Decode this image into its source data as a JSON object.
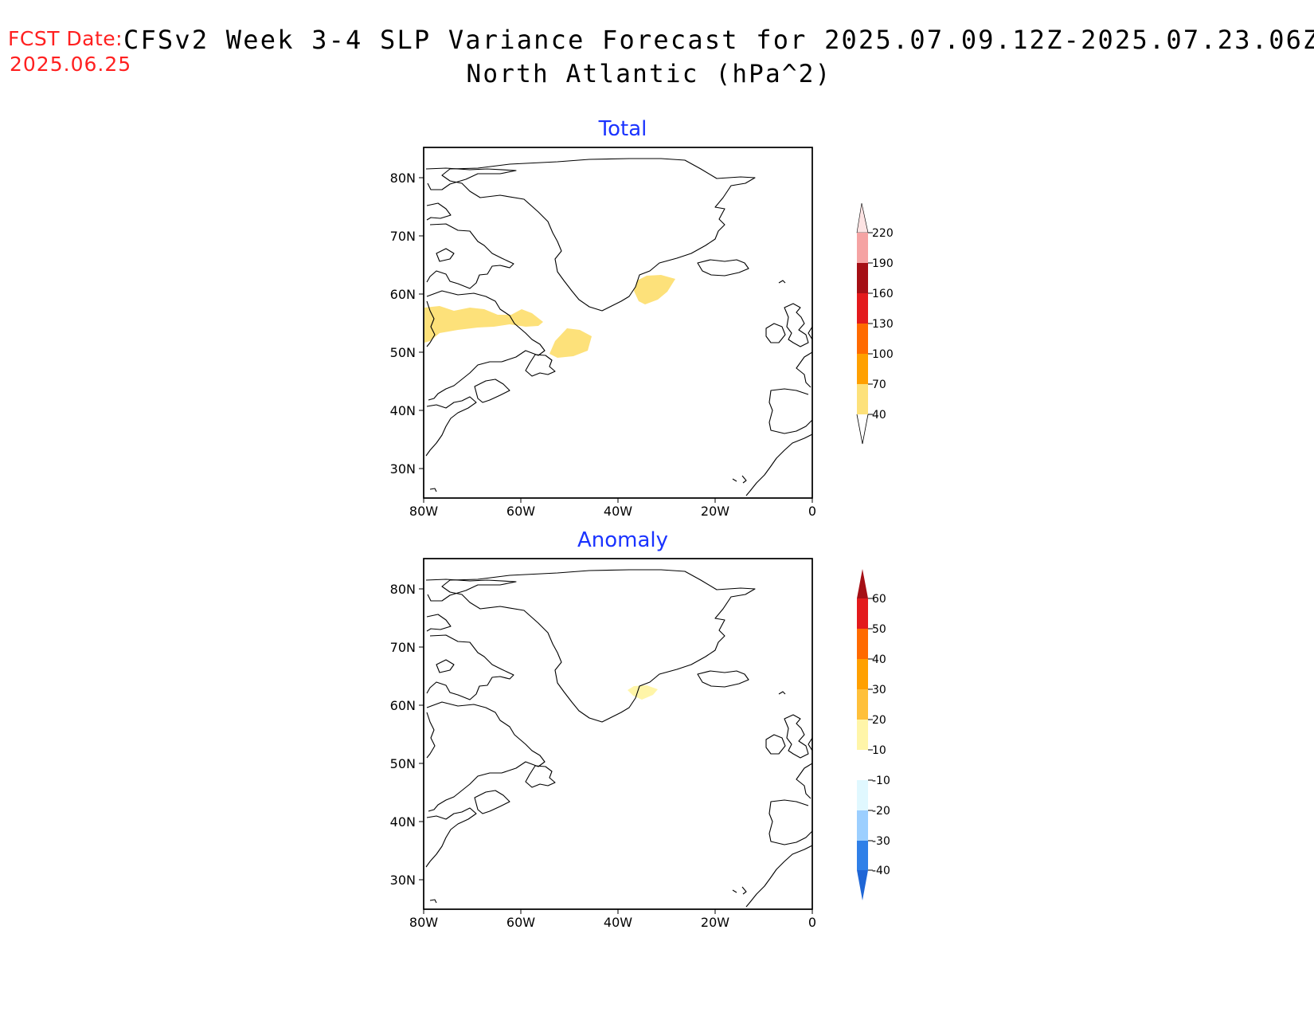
{
  "header": {
    "fcst_label": "FCST Date:",
    "fcst_date": "2025.06.25",
    "title": "CFSv2 Week 3-4 SLP Variance Forecast for 2025.07.09.12Z-2025.07.23.06Z",
    "subtitle": "North Atlantic (hPa^2)"
  },
  "colors": {
    "header_date": "#ff2020",
    "panel_title": "#1a33ff",
    "coast": "#000000"
  },
  "map": {
    "region": "North Atlantic",
    "lon_range": [
      -80,
      0
    ],
    "lat_range": [
      25,
      85
    ],
    "lon_ticks": [
      "80W",
      "60W",
      "40W",
      "20W",
      "0"
    ],
    "lat_ticks": [
      "80N",
      "70N",
      "60N",
      "50N",
      "40N",
      "30N"
    ]
  },
  "panels": {
    "total": {
      "title": "Total",
      "legend_labels": [
        "220",
        "190",
        "160",
        "130",
        "100",
        "70",
        "40"
      ],
      "legend_colors": [
        "#fde3e3",
        "#f5a3a3",
        "#a50f15",
        "#e31a1c",
        "#ff6a00",
        "#ffa000",
        "#fde17a"
      ],
      "shaded_areas": [
        {
          "label": "Labrador / Quebec band",
          "level": "40-70"
        },
        {
          "label": "East of Newfoundland",
          "level": "40-70"
        },
        {
          "label": "South-east of Cape Farewell",
          "level": "40-70"
        }
      ]
    },
    "anomaly": {
      "title": "Anomaly",
      "legend_labels": [
        "60",
        "50",
        "40",
        "30",
        "20",
        "10",
        "-10",
        "-20",
        "-30",
        "-40"
      ],
      "legend_colors": [
        "#a50f15",
        "#e31a1c",
        "#ff6a00",
        "#ffa000",
        "#ffc03a",
        "#fff5a8",
        "#ffffff",
        "#e0f8ff",
        "#9ccfff",
        "#2f80e8",
        "#1f66d6"
      ],
      "shaded_areas": [
        {
          "label": "South-east of Cape Farewell",
          "level": "10-20"
        }
      ]
    }
  }
}
